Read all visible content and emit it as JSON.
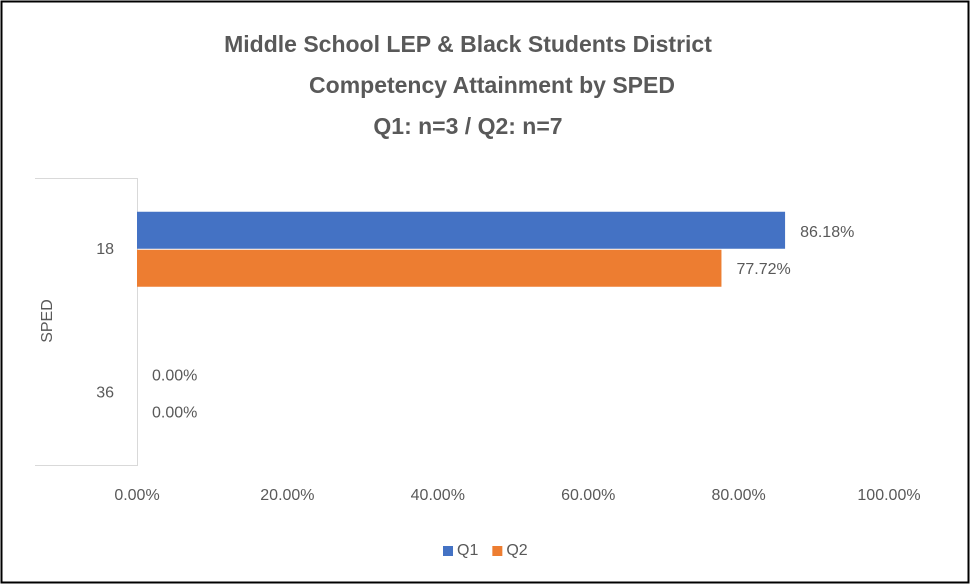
{
  "chart_data": {
    "type": "hbar",
    "title": [
      "Middle School LEP & Black Students District",
      "Competency Attainment by SPED",
      "Q1: n=3 / Q2: n=7"
    ],
    "y_label": "SPED",
    "categories": [
      "18",
      "36"
    ],
    "series": [
      {
        "name": "Q1",
        "color": "#4472c4",
        "values": [
          86.18,
          0
        ],
        "value_labels": [
          "86.18%",
          "0.00%"
        ]
      },
      {
        "name": "Q2",
        "color": "#ed7d31",
        "values": [
          77.72,
          0
        ],
        "value_labels": [
          "77.72%",
          "0.00%"
        ]
      }
    ],
    "xlim": [
      0,
      100
    ],
    "xticks": [
      {
        "value": 0,
        "label": "0.00%"
      },
      {
        "value": 20,
        "label": "20.00%"
      },
      {
        "value": 40,
        "label": "40.00%"
      },
      {
        "value": 60,
        "label": "60.00%"
      },
      {
        "value": 80,
        "label": "80.00%"
      },
      {
        "value": 100,
        "label": "100.00%"
      }
    ],
    "grid": false,
    "legend": "bottom"
  }
}
